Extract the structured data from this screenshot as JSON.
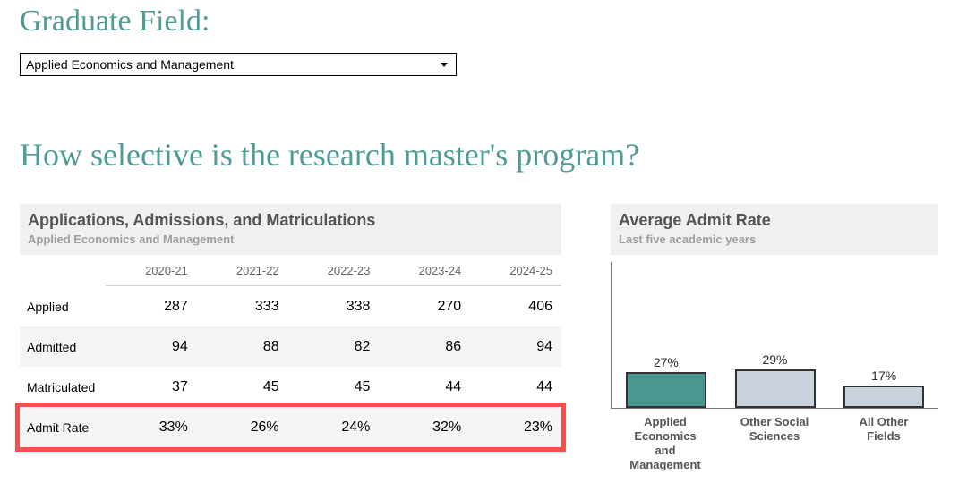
{
  "filter": {
    "label": "Graduate Field:",
    "selected_value": "Applied Economics and Management"
  },
  "question": "How selective is the research master's program?",
  "table": {
    "title": "Applications, Admissions, and Matriculations",
    "subtitle": "Applied Economics and Management",
    "columns": [
      "2020-21",
      "2021-22",
      "2022-23",
      "2023-24",
      "2024-25"
    ],
    "rows": [
      {
        "label": "Applied",
        "values": [
          "287",
          "333",
          "338",
          "270",
          "406"
        ],
        "highlight": false
      },
      {
        "label": "Admitted",
        "values": [
          "94",
          "88",
          "82",
          "86",
          "94"
        ],
        "highlight": false
      },
      {
        "label": "Matriculated",
        "values": [
          "37",
          "45",
          "45",
          "44",
          "44"
        ],
        "highlight": false
      },
      {
        "label": "Admit Rate",
        "values": [
          "33%",
          "26%",
          "24%",
          "32%",
          "23%"
        ],
        "highlight": true
      }
    ]
  },
  "chart": {
    "title": "Average Admit Rate",
    "subtitle": "Last five academic years"
  },
  "chart_data": {
    "type": "bar",
    "title": "Average Admit Rate",
    "subtitle": "Last five academic years",
    "categories": [
      "Applied Economics and Management",
      "Other Social Sciences",
      "All Other Fields"
    ],
    "values": [
      27,
      29,
      17
    ],
    "labels": [
      "27%",
      "29%",
      "17%"
    ],
    "ylim": [
      0,
      110
    ],
    "grid": false,
    "legend": "none",
    "bar_colors": [
      "#4A978F",
      "#CAD2DB",
      "#CAD2DB"
    ]
  },
  "colors": {
    "accent_teal": "#4F9B95",
    "bar_teal": "#4A978F",
    "bar_gray": "#CAD2DB",
    "highlight_red": "#F0514E",
    "panel_header_bg": "#F0F0F0",
    "row_band_bg": "#F4F4F4"
  }
}
